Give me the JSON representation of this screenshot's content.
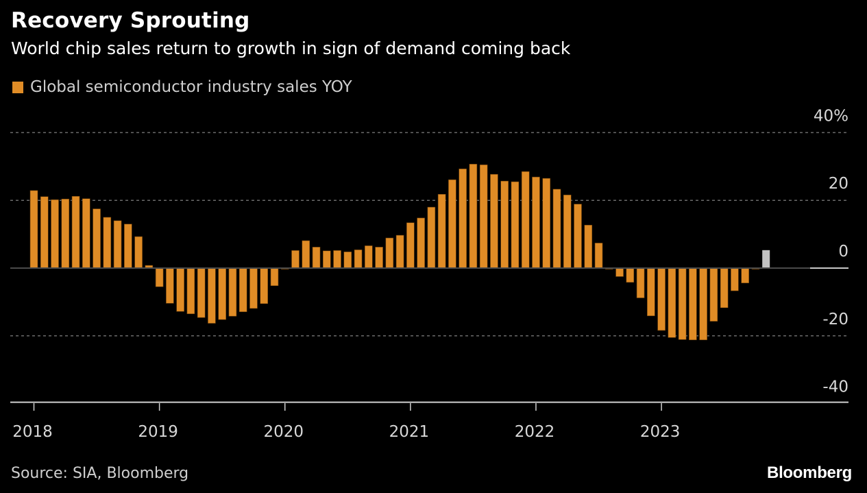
{
  "header": {
    "title": "Recovery Sprouting",
    "subtitle": "World chip sales return to growth in sign of demand coming back"
  },
  "legend": {
    "label": "Global semiconductor industry sales YOY",
    "color": "#E08C26"
  },
  "footer": {
    "source": "Source: SIA, Bloomberg",
    "brand": "Bloomberg"
  },
  "colors": {
    "bar": "#E08C26",
    "highlight_bar": "#C2C2C2",
    "background": "#000000",
    "gridline": "#6a6a6a",
    "zero_line": "#4a4a4a",
    "zero_line_end": "#c8c8c8",
    "axis": "#d0d0d0"
  },
  "chart_data": {
    "type": "bar",
    "title": "Recovery Sprouting",
    "subtitle": "World chip sales return to growth in sign of demand coming back",
    "xlabel": "",
    "ylabel": "",
    "y_unit": "%",
    "ylim": [
      -40,
      40
    ],
    "yticks": [
      40,
      20,
      0,
      -20,
      -40
    ],
    "ytick_labels": [
      "40%",
      "20",
      "0",
      "-20",
      "-40"
    ],
    "grid": true,
    "legend_position": "top-left",
    "x_tick_labels": [
      "2018",
      "2019",
      "2020",
      "2021",
      "2022",
      "2023"
    ],
    "start_month": "2018-01",
    "end_month": "2023-11",
    "series": [
      {
        "name": "Global semiconductor industry sales YOY",
        "values": [
          22.9,
          21.1,
          20.2,
          20.4,
          21.2,
          20.5,
          17.5,
          15.0,
          14.0,
          13.0,
          9.3,
          0.8,
          -5.5,
          -10.4,
          -12.8,
          -13.5,
          -14.6,
          -16.3,
          -15.2,
          -14.2,
          -12.9,
          -11.9,
          -10.5,
          -5.2,
          -0.3,
          5.2,
          8.1,
          6.2,
          5.1,
          5.2,
          4.8,
          5.4,
          6.6,
          6.2,
          8.9,
          9.7,
          13.4,
          14.8,
          18.0,
          21.8,
          26.1,
          29.3,
          30.7,
          30.5,
          27.7,
          25.7,
          25.5,
          28.5,
          26.9,
          26.5,
          23.3,
          21.6,
          18.9,
          12.7,
          7.4,
          -0.3,
          -2.5,
          -4.2,
          -8.8,
          -14.1,
          -18.4,
          -20.5,
          -21.1,
          -21.2,
          -21.2,
          -15.7,
          -11.7,
          -6.7,
          -4.4,
          -0.3,
          5.3
        ],
        "highlighted_last": true
      }
    ]
  }
}
